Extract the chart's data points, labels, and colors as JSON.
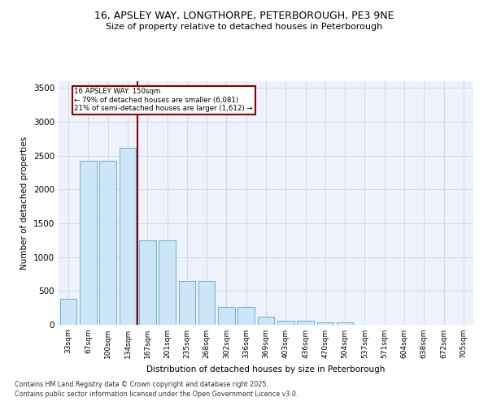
{
  "title_line1": "16, APSLEY WAY, LONGTHORPE, PETERBOROUGH, PE3 9NE",
  "title_line2": "Size of property relative to detached houses in Peterborough",
  "xlabel": "Distribution of detached houses by size in Peterborough",
  "ylabel": "Number of detached properties",
  "categories": [
    "33sqm",
    "67sqm",
    "100sqm",
    "134sqm",
    "167sqm",
    "201sqm",
    "235sqm",
    "268sqm",
    "302sqm",
    "336sqm",
    "369sqm",
    "403sqm",
    "436sqm",
    "470sqm",
    "504sqm",
    "537sqm",
    "571sqm",
    "604sqm",
    "638sqm",
    "672sqm",
    "705sqm"
  ],
  "values": [
    390,
    2420,
    2420,
    2620,
    1250,
    1250,
    650,
    650,
    260,
    260,
    120,
    65,
    65,
    40,
    40,
    0,
    0,
    0,
    0,
    0,
    0
  ],
  "bar_color": "#cce5f7",
  "bar_edge_color": "#6baed6",
  "property_line_x": 3.5,
  "annotation_line1": "16 APSLEY WAY: 150sqm",
  "annotation_line2": "← 79% of detached houses are smaller (6,081)",
  "annotation_line3": "21% of semi-detached houses are larger (1,612) →",
  "vline_color": "#8b0000",
  "annotation_box_edgecolor": "#8b0000",
  "ylim_max": 3600,
  "yticks": [
    0,
    500,
    1000,
    1500,
    2000,
    2500,
    3000,
    3500
  ],
  "bg_color": "#eef3fb",
  "grid_color": "#d0d8e8",
  "footer_line1": "Contains HM Land Registry data © Crown copyright and database right 2025.",
  "footer_line2": "Contains public sector information licensed under the Open Government Licence v3.0."
}
